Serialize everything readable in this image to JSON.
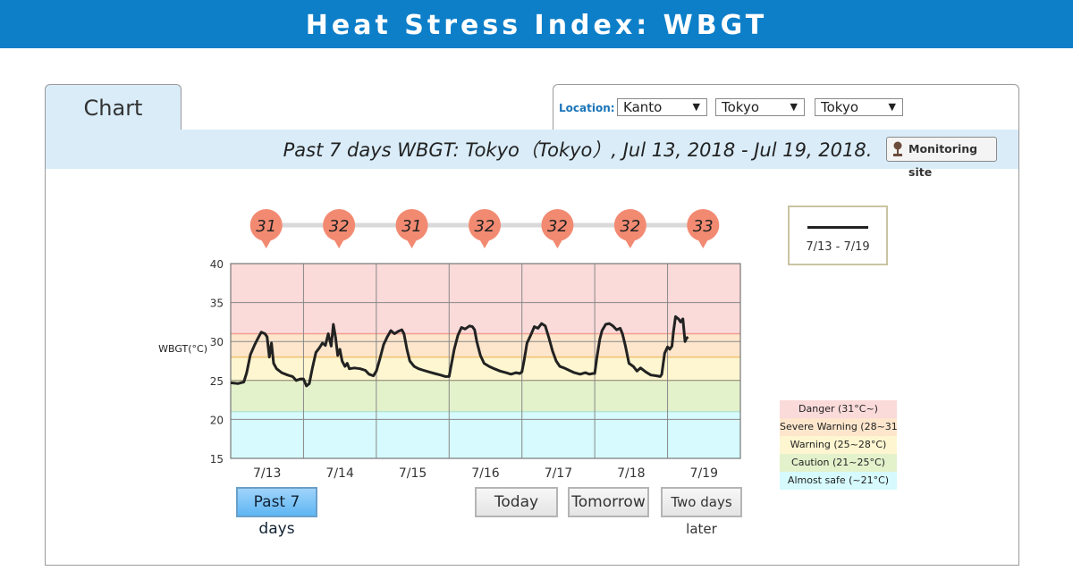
{
  "header": {
    "title": "Heat Stress Index: WBGT"
  },
  "tab": {
    "label": "Chart"
  },
  "location": {
    "label": "Location:",
    "region": "Kanto",
    "prefecture": "Tokyo",
    "site": "Tokyo",
    "arrow": "▼"
  },
  "subtitle": "Past 7 days WBGT: Tokyo（Tokyo）, Jul 13, 2018 - Jul 19, 2018.",
  "monitoring_button": "Monitoring site",
  "legend": {
    "series_label": "7/13 - 7/19"
  },
  "zones": [
    {
      "label": "Danger (31°C~)",
      "color": "#fbdada"
    },
    {
      "label": "Severe Warning (28~31°C)",
      "color": "#fde6cc"
    },
    {
      "label": "Warning (25~28°C)",
      "color": "#fdf6d0"
    },
    {
      "label": "Caution (21~25°C)",
      "color": "#e4f2cc"
    },
    {
      "label": "Almost safe (~21°C)",
      "color": "#d6fafd"
    }
  ],
  "buttons": {
    "past7": "Past 7 days",
    "today": "Today",
    "tomorrow": "Tomorrow",
    "two_days_later": "Two days later"
  },
  "chart_data": {
    "type": "line",
    "title": "Past 7 days WBGT",
    "ylabel": "WBGT(°C)",
    "ylim": [
      15,
      40
    ],
    "yticks": [
      15,
      20,
      25,
      30,
      35,
      40
    ],
    "categories": [
      "7/13",
      "7/14",
      "7/15",
      "7/16",
      "7/17",
      "7/18",
      "7/19"
    ],
    "daily_max": [
      31,
      32,
      31,
      32,
      32,
      32,
      33
    ],
    "thresholds": [
      21,
      25,
      28,
      31
    ],
    "marker_color": "#f28a72",
    "line_color": "#222222",
    "series": [
      {
        "name": "7/13 - 7/19",
        "points": [
          [
            0.0,
            24.7
          ],
          [
            0.1,
            24.6
          ],
          [
            0.18,
            24.8
          ],
          [
            0.22,
            26.0
          ],
          [
            0.27,
            28.3
          ],
          [
            0.33,
            29.6
          ],
          [
            0.38,
            30.5
          ],
          [
            0.42,
            31.2
          ],
          [
            0.47,
            31.0
          ],
          [
            0.5,
            30.6
          ],
          [
            0.53,
            28.0
          ],
          [
            0.56,
            29.8
          ],
          [
            0.59,
            27.2
          ],
          [
            0.63,
            26.5
          ],
          [
            0.7,
            26.0
          ],
          [
            0.78,
            25.7
          ],
          [
            0.85,
            25.5
          ],
          [
            0.9,
            25.0
          ],
          [
            0.96,
            25.2
          ],
          [
            1.0,
            25.2
          ],
          [
            1.04,
            24.3
          ],
          [
            1.08,
            24.6
          ],
          [
            1.12,
            26.5
          ],
          [
            1.17,
            28.6
          ],
          [
            1.22,
            29.2
          ],
          [
            1.26,
            29.8
          ],
          [
            1.3,
            29.5
          ],
          [
            1.34,
            31.0
          ],
          [
            1.38,
            29.4
          ],
          [
            1.41,
            32.2
          ],
          [
            1.44,
            30.5
          ],
          [
            1.47,
            28.2
          ],
          [
            1.5,
            29.0
          ],
          [
            1.53,
            27.5
          ],
          [
            1.57,
            26.8
          ],
          [
            1.6,
            27.2
          ],
          [
            1.63,
            26.5
          ],
          [
            1.7,
            26.6
          ],
          [
            1.78,
            26.5
          ],
          [
            1.85,
            26.3
          ],
          [
            1.9,
            25.8
          ],
          [
            1.96,
            25.6
          ],
          [
            2.0,
            26.2
          ],
          [
            2.05,
            27.8
          ],
          [
            2.1,
            29.6
          ],
          [
            2.15,
            30.6
          ],
          [
            2.2,
            31.4
          ],
          [
            2.25,
            31.0
          ],
          [
            2.3,
            31.3
          ],
          [
            2.35,
            31.5
          ],
          [
            2.38,
            31.0
          ],
          [
            2.42,
            29.0
          ],
          [
            2.46,
            27.5
          ],
          [
            2.52,
            26.8
          ],
          [
            2.58,
            26.5
          ],
          [
            2.65,
            26.3
          ],
          [
            2.72,
            26.1
          ],
          [
            2.8,
            25.9
          ],
          [
            2.88,
            25.7
          ],
          [
            2.95,
            25.5
          ],
          [
            3.0,
            25.5
          ],
          [
            3.03,
            27.0
          ],
          [
            3.07,
            29.0
          ],
          [
            3.12,
            30.8
          ],
          [
            3.17,
            31.8
          ],
          [
            3.22,
            31.6
          ],
          [
            3.28,
            32.0
          ],
          [
            3.32,
            31.9
          ],
          [
            3.35,
            31.5
          ],
          [
            3.38,
            30.0
          ],
          [
            3.43,
            28.2
          ],
          [
            3.48,
            27.2
          ],
          [
            3.55,
            26.8
          ],
          [
            3.62,
            26.5
          ],
          [
            3.7,
            26.2
          ],
          [
            3.78,
            26.0
          ],
          [
            3.85,
            25.8
          ],
          [
            3.92,
            26.0
          ],
          [
            3.97,
            25.9
          ],
          [
            4.0,
            26.1
          ],
          [
            4.03,
            27.6
          ],
          [
            4.07,
            29.8
          ],
          [
            4.12,
            30.8
          ],
          [
            4.17,
            31.9
          ],
          [
            4.22,
            31.7
          ],
          [
            4.27,
            32.3
          ],
          [
            4.32,
            32.0
          ],
          [
            4.37,
            30.5
          ],
          [
            4.42,
            28.8
          ],
          [
            4.47,
            27.5
          ],
          [
            4.52,
            26.8
          ],
          [
            4.58,
            26.6
          ],
          [
            4.65,
            26.3
          ],
          [
            4.72,
            26.0
          ],
          [
            4.8,
            25.8
          ],
          [
            4.87,
            26.0
          ],
          [
            4.93,
            25.8
          ],
          [
            4.97,
            25.9
          ],
          [
            5.0,
            25.9
          ],
          [
            5.03,
            28.0
          ],
          [
            5.07,
            30.3
          ],
          [
            5.1,
            31.4
          ],
          [
            5.15,
            32.2
          ],
          [
            5.2,
            32.3
          ],
          [
            5.25,
            32.0
          ],
          [
            5.3,
            31.5
          ],
          [
            5.35,
            31.7
          ],
          [
            5.38,
            31.0
          ],
          [
            5.42,
            29.5
          ],
          [
            5.47,
            27.2
          ],
          [
            5.53,
            26.8
          ],
          [
            5.58,
            26.2
          ],
          [
            5.63,
            26.6
          ],
          [
            5.7,
            26.1
          ],
          [
            5.77,
            25.7
          ],
          [
            5.85,
            25.6
          ],
          [
            5.9,
            25.5
          ],
          [
            5.92,
            25.8
          ],
          [
            5.96,
            28.5
          ],
          [
            6.0,
            29.3
          ],
          [
            6.03,
            29.0
          ],
          [
            6.06,
            29.4
          ],
          [
            6.08,
            31.2
          ],
          [
            6.11,
            33.2
          ],
          [
            6.15,
            32.9
          ],
          [
            6.18,
            32.5
          ],
          [
            6.21,
            32.9
          ],
          [
            6.24,
            30.0
          ],
          [
            6.26,
            30.4
          ],
          [
            6.28,
            30.6
          ]
        ]
      }
    ]
  }
}
